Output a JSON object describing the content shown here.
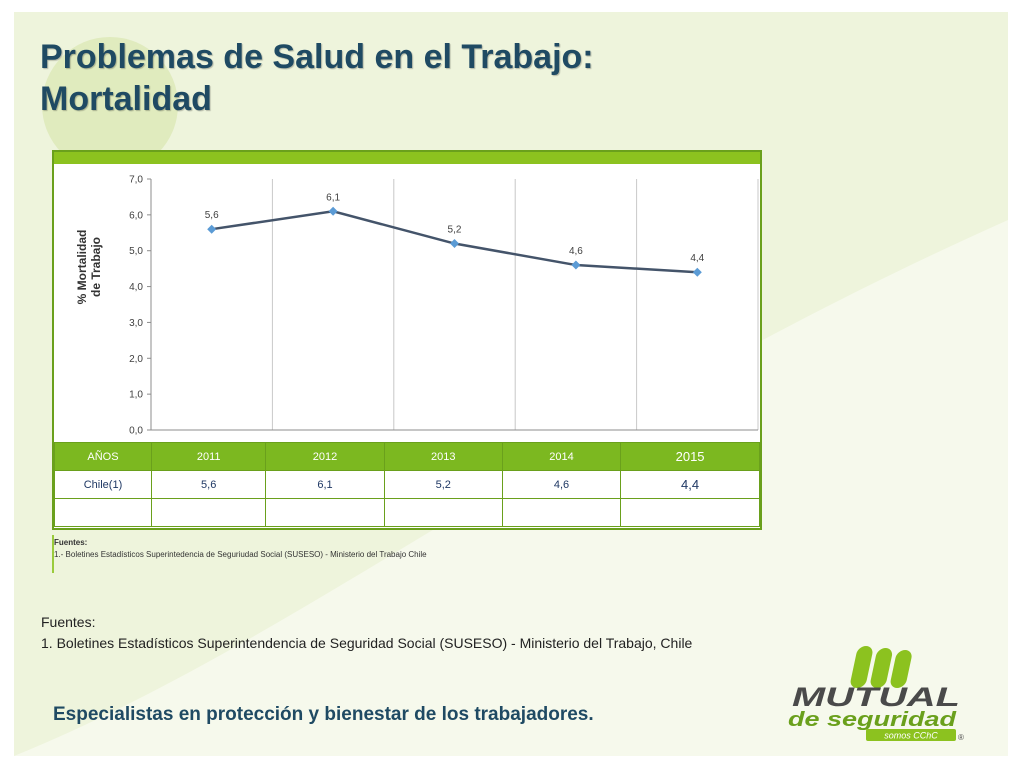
{
  "title": "Problemas de Salud en el Trabajo: Mortalidad",
  "colors": {
    "accent_green": "#8cc21f",
    "table_green": "#7cb820",
    "title_blue": "#1f4a63",
    "series_line": "#44546a",
    "marker": "#5b9bd5"
  },
  "chart_data": {
    "type": "line",
    "ylabel": "% Mortalidad de Trabajo",
    "ylim": [
      0,
      7
    ],
    "yticks": [
      "0,0",
      "1,0",
      "2,0",
      "3,0",
      "4,0",
      "5,0",
      "6,0",
      "7,0"
    ],
    "x": [
      "2011",
      "2012",
      "2013",
      "2014",
      "2015"
    ],
    "series": [
      {
        "name": "Chile(1)",
        "values": [
          5.6,
          6.1,
          5.2,
          4.6,
          4.4
        ],
        "labels": [
          "5,6",
          "6,1",
          "5,2",
          "4,6",
          "4,4"
        ]
      }
    ],
    "grid": "vertical"
  },
  "table": {
    "header_label": "AÑOS",
    "row_label": "Chile(1)"
  },
  "inner_sources": {
    "label": "Fuentes:",
    "text": "1.-  Boletines Estadísticos Superintedencia de Seguriudad Social  (SUSESO) - Ministerio del Trabajo Chile"
  },
  "sources": {
    "label": "Fuentes:",
    "item": "1.   Boletines Estadísticos Superintendencia de Seguridad Social  (SUSESO) - Ministerio del Trabajo, Chile"
  },
  "tagline": "Especialistas en protección y bienestar de los trabajadores.",
  "logo": {
    "name": "MUTUAL",
    "sub": "de seguridad",
    "tag": "somos CChC",
    "mark": "®"
  }
}
